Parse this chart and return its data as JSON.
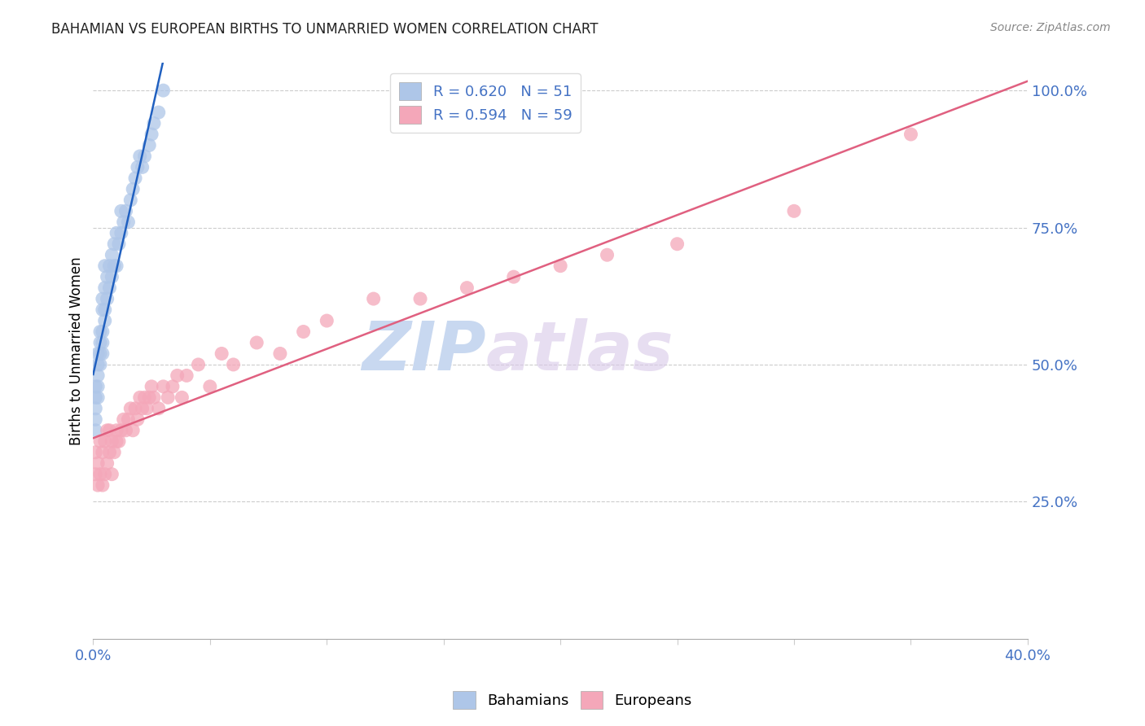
{
  "title": "BAHAMIAN VS EUROPEAN BIRTHS TO UNMARRIED WOMEN CORRELATION CHART",
  "source": "Source: ZipAtlas.com",
  "ylabel": "Births to Unmarried Women",
  "bahamian_R": 0.62,
  "bahamian_N": 51,
  "european_R": 0.594,
  "european_N": 59,
  "bahamian_color": "#aec6e8",
  "european_color": "#f4a7b9",
  "bahamian_line_color": "#2060c0",
  "european_line_color": "#e06080",
  "watermark_zip": "ZIP",
  "watermark_atlas": "atlas",
  "watermark_color_zip": "#c8d8f0",
  "watermark_color_atlas": "#c8d8f0",
  "xlim": [
    0.0,
    0.4
  ],
  "ylim": [
    0.0,
    1.05
  ],
  "background_color": "#ffffff",
  "bahamian_x": [
    0.001,
    0.001,
    0.001,
    0.001,
    0.001,
    0.002,
    0.002,
    0.002,
    0.002,
    0.002,
    0.003,
    0.003,
    0.003,
    0.003,
    0.004,
    0.004,
    0.004,
    0.004,
    0.004,
    0.005,
    0.005,
    0.005,
    0.005,
    0.006,
    0.006,
    0.007,
    0.007,
    0.008,
    0.008,
    0.009,
    0.009,
    0.01,
    0.01,
    0.011,
    0.012,
    0.012,
    0.013,
    0.014,
    0.015,
    0.016,
    0.017,
    0.018,
    0.019,
    0.02,
    0.021,
    0.022,
    0.024,
    0.025,
    0.026,
    0.028,
    0.03
  ],
  "bahamian_y": [
    0.38,
    0.4,
    0.42,
    0.44,
    0.46,
    0.44,
    0.46,
    0.48,
    0.5,
    0.52,
    0.5,
    0.52,
    0.54,
    0.56,
    0.52,
    0.54,
    0.56,
    0.6,
    0.62,
    0.58,
    0.6,
    0.64,
    0.68,
    0.62,
    0.66,
    0.64,
    0.68,
    0.66,
    0.7,
    0.68,
    0.72,
    0.68,
    0.74,
    0.72,
    0.74,
    0.78,
    0.76,
    0.78,
    0.76,
    0.8,
    0.82,
    0.84,
    0.86,
    0.88,
    0.86,
    0.88,
    0.9,
    0.92,
    0.94,
    0.96,
    1.0
  ],
  "european_x": [
    0.001,
    0.001,
    0.002,
    0.002,
    0.003,
    0.003,
    0.004,
    0.004,
    0.005,
    0.005,
    0.006,
    0.006,
    0.007,
    0.007,
    0.008,
    0.008,
    0.009,
    0.01,
    0.01,
    0.011,
    0.012,
    0.013,
    0.014,
    0.015,
    0.016,
    0.017,
    0.018,
    0.019,
    0.02,
    0.021,
    0.022,
    0.023,
    0.024,
    0.025,
    0.026,
    0.028,
    0.03,
    0.032,
    0.034,
    0.036,
    0.038,
    0.04,
    0.045,
    0.05,
    0.055,
    0.06,
    0.07,
    0.08,
    0.09,
    0.1,
    0.12,
    0.14,
    0.16,
    0.18,
    0.2,
    0.22,
    0.25,
    0.3,
    0.35
  ],
  "european_y": [
    0.3,
    0.34,
    0.28,
    0.32,
    0.3,
    0.36,
    0.28,
    0.34,
    0.3,
    0.36,
    0.32,
    0.38,
    0.34,
    0.38,
    0.3,
    0.36,
    0.34,
    0.36,
    0.38,
    0.36,
    0.38,
    0.4,
    0.38,
    0.4,
    0.42,
    0.38,
    0.42,
    0.4,
    0.44,
    0.42,
    0.44,
    0.42,
    0.44,
    0.46,
    0.44,
    0.42,
    0.46,
    0.44,
    0.46,
    0.48,
    0.44,
    0.48,
    0.5,
    0.46,
    0.52,
    0.5,
    0.54,
    0.52,
    0.56,
    0.58,
    0.62,
    0.62,
    0.64,
    0.66,
    0.68,
    0.7,
    0.72,
    0.78,
    0.92
  ]
}
